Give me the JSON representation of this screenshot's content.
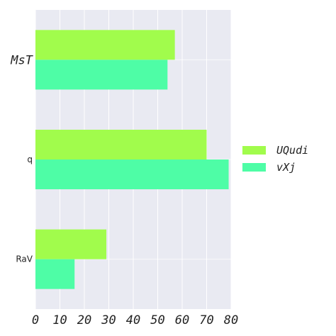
{
  "chart_data": {
    "type": "bar",
    "orientation": "horizontal",
    "categories": [
      "MsT",
      "q",
      "RaV"
    ],
    "series": [
      {
        "name": "UQudi",
        "color": "#a1fc4c",
        "values": [
          57,
          70,
          29
        ]
      },
      {
        "name": "vXj",
        "color": "#4efda6",
        "values": [
          54,
          79,
          16
        ]
      }
    ],
    "xlim": [
      0,
      80
    ],
    "xticks": [
      0,
      10,
      20,
      30,
      40,
      50,
      60,
      70,
      80
    ],
    "title": "",
    "xlabel": "",
    "ylabel": "",
    "grid": true,
    "legend_position": "right",
    "background": "#e9eaf2"
  }
}
